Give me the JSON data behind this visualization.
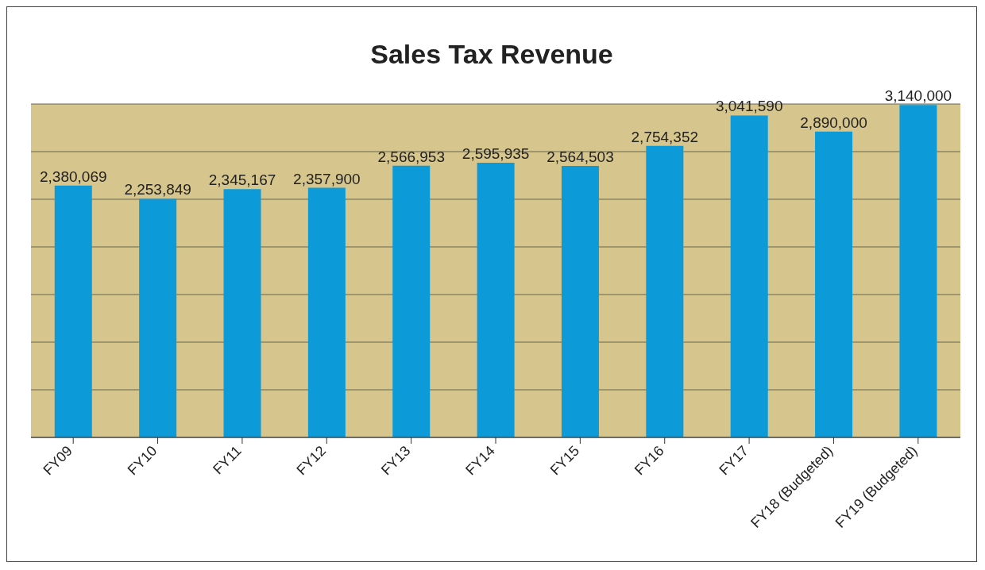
{
  "chart_data": {
    "type": "bar",
    "title": "Sales Tax Revenue",
    "categories": [
      "FY09",
      "FY10",
      "FY11",
      "FY12",
      "FY13",
      "FY14",
      "FY15",
      "FY16",
      "FY17",
      "FY18 (Budgeted)",
      "FY19 (Budgeted)"
    ],
    "values": [
      2380069,
      2253849,
      2345167,
      2357900,
      2566953,
      2595935,
      2564503,
      2754352,
      3041590,
      2890000,
      3140000
    ],
    "value_labels": [
      "2,380,069",
      "2,253,849",
      "2,345,167",
      "2,357,900",
      "2,566,953",
      "2,595,935",
      "2,564,503",
      "2,754,352",
      "3,041,590",
      "2,890,000",
      "3,140,000"
    ],
    "color": "#0d9ad9",
    "tick_labels": "x",
    "grid": "y"
  }
}
